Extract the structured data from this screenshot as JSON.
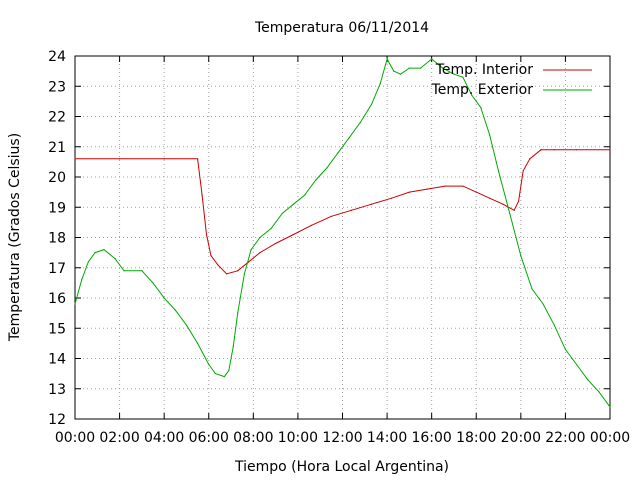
{
  "chart_data": {
    "type": "line",
    "title": "Temperatura 06/11/2014",
    "xlabel": "Tiempo (Hora Local Argentina)",
    "ylabel": "Temperatura (Grados Celsius)",
    "xlim": [
      0,
      24
    ],
    "ylim": [
      12,
      24
    ],
    "grid": true,
    "legend_position": "top-right",
    "x_ticks": [
      {
        "value": 0,
        "label": "00:00"
      },
      {
        "value": 2,
        "label": "02:00"
      },
      {
        "value": 4,
        "label": "04:00"
      },
      {
        "value": 6,
        "label": "06:00"
      },
      {
        "value": 8,
        "label": "08:00"
      },
      {
        "value": 10,
        "label": "10:00"
      },
      {
        "value": 12,
        "label": "12:00"
      },
      {
        "value": 14,
        "label": "14:00"
      },
      {
        "value": 16,
        "label": "16:00"
      },
      {
        "value": 18,
        "label": "18:00"
      },
      {
        "value": 20,
        "label": "20:00"
      },
      {
        "value": 22,
        "label": "22:00"
      },
      {
        "value": 24,
        "label": "00:00"
      }
    ],
    "y_ticks": [
      {
        "value": 12,
        "label": "12"
      },
      {
        "value": 13,
        "label": "13"
      },
      {
        "value": 14,
        "label": "14"
      },
      {
        "value": 15,
        "label": "15"
      },
      {
        "value": 16,
        "label": "16"
      },
      {
        "value": 17,
        "label": "17"
      },
      {
        "value": 18,
        "label": "18"
      },
      {
        "value": 19,
        "label": "19"
      },
      {
        "value": 20,
        "label": "20"
      },
      {
        "value": 21,
        "label": "21"
      },
      {
        "value": 22,
        "label": "22"
      },
      {
        "value": 23,
        "label": "23"
      },
      {
        "value": 24,
        "label": "24"
      }
    ],
    "series": [
      {
        "name": "Temp. Interior",
        "color": "#cc0000",
        "x": [
          0,
          2,
          4,
          5.5,
          5.7,
          5.9,
          6.1,
          6.4,
          6.8,
          7.3,
          7.8,
          8.3,
          9,
          9.8,
          10.6,
          11.5,
          12.4,
          13.3,
          14.2,
          15,
          15.8,
          16.6,
          17.4,
          18,
          18.6,
          19.2,
          19.7,
          19.9,
          20.1,
          20.4,
          20.9,
          21.5,
          22.5,
          24
        ],
        "y": [
          20.6,
          20.6,
          20.6,
          20.6,
          19.4,
          18.1,
          17.4,
          17.1,
          16.8,
          16.9,
          17.2,
          17.5,
          17.8,
          18.1,
          18.4,
          18.7,
          18.9,
          19.1,
          19.3,
          19.5,
          19.6,
          19.7,
          19.7,
          19.5,
          19.3,
          19.1,
          18.9,
          19.2,
          20.2,
          20.6,
          20.9,
          20.9,
          20.9,
          20.9
        ]
      },
      {
        "name": "Temp. Exterior",
        "color": "#00aa00",
        "x": [
          0,
          0.3,
          0.6,
          0.9,
          1.3,
          1.8,
          2.2,
          3,
          3.5,
          4,
          4.5,
          5,
          5.5,
          6,
          6.3,
          6.7,
          6.9,
          7.1,
          7.3,
          7.6,
          7.9,
          8.3,
          8.8,
          9.3,
          9.8,
          10.3,
          10.8,
          11.3,
          11.8,
          12.3,
          12.8,
          13.3,
          13.7,
          14,
          14.3,
          14.6,
          15,
          15.5,
          16,
          16.5,
          17,
          17.4,
          17.8,
          18.2,
          18.6,
          19,
          19.5,
          20,
          20.5,
          21,
          21.5,
          22,
          22.5,
          23,
          23.5,
          24
        ],
        "y": [
          15.8,
          16.6,
          17.2,
          17.5,
          17.6,
          17.3,
          16.9,
          16.9,
          16.5,
          16,
          15.6,
          15.1,
          14.5,
          13.8,
          13.5,
          13.4,
          13.6,
          14.4,
          15.5,
          16.8,
          17.6,
          18,
          18.3,
          18.8,
          19.1,
          19.4,
          19.9,
          20.3,
          20.8,
          21.3,
          21.8,
          22.4,
          23.1,
          23.9,
          23.5,
          23.4,
          23.6,
          23.6,
          23.9,
          23.6,
          23.4,
          23.3,
          22.7,
          22.3,
          21.4,
          20.2,
          18.8,
          17.4,
          16.3,
          15.8,
          15.1,
          14.3,
          13.8,
          13.3,
          12.9,
          12.4
        ]
      }
    ]
  }
}
